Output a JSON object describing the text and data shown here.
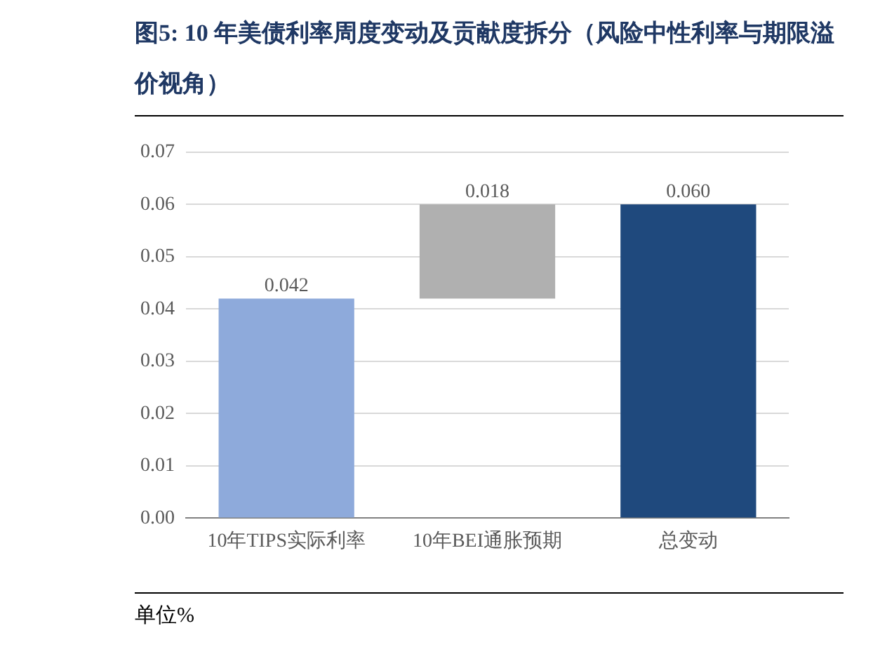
{
  "chart_data": {
    "type": "bar",
    "title": "图5:  10 年美债利率周度变动及贡献度拆分（风险中性利率与期限溢价视角）",
    "categories": [
      "10年TIPS实际利率",
      "10年BEI通胀预期",
      "总变动"
    ],
    "values": [
      0.042,
      0.018,
      0.06
    ],
    "base": [
      0,
      0.042,
      0
    ],
    "colors": [
      "#8eaadb",
      "#b0b0b0",
      "#1f497d"
    ],
    "value_labels": [
      "0.042",
      "0.018",
      "0.060"
    ],
    "ylim": [
      0,
      0.07
    ],
    "yticks": [
      {
        "value": 0,
        "label": "0.00"
      },
      {
        "value": 0.01,
        "label": "0.01"
      },
      {
        "value": 0.02,
        "label": "0.02"
      },
      {
        "value": 0.03,
        "label": "0.03"
      },
      {
        "value": 0.04,
        "label": "0.04"
      },
      {
        "value": 0.05,
        "label": "0.05"
      },
      {
        "value": 0.06,
        "label": "0.06"
      },
      {
        "value": 0.07,
        "label": "0.07"
      }
    ],
    "grid": "y",
    "annotations": [
      "单位%"
    ]
  }
}
